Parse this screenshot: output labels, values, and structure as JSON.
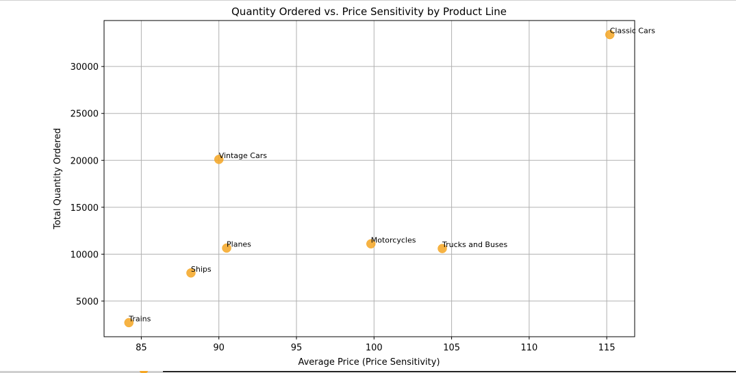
{
  "chart_data": {
    "type": "scatter",
    "title": "Quantity Ordered vs. Price Sensitivity by Product Line",
    "xlabel": "Average Price (Price Sensitivity)",
    "ylabel": "Total Quantity Ordered",
    "xlim": [
      82.6,
      116.8
    ],
    "ylim": [
      1200,
      34900
    ],
    "xticks": [
      85,
      90,
      95,
      100,
      105,
      110,
      115
    ],
    "yticks": [
      5000,
      10000,
      15000,
      20000,
      25000,
      30000
    ],
    "grid": true,
    "marker_color": "#f5a623",
    "points": [
      {
        "label": "Classic Cars",
        "x": 115.2,
        "y": 33400
      },
      {
        "label": "Vintage Cars",
        "x": 90.0,
        "y": 20100
      },
      {
        "label": "Motorcycles",
        "x": 99.8,
        "y": 11100
      },
      {
        "label": "Trucks and Buses",
        "x": 104.4,
        "y": 10600
      },
      {
        "label": "Planes",
        "x": 90.5,
        "y": 10650
      },
      {
        "label": "Ships",
        "x": 88.2,
        "y": 8000
      },
      {
        "label": "Trains",
        "x": 84.2,
        "y": 2700
      }
    ]
  }
}
